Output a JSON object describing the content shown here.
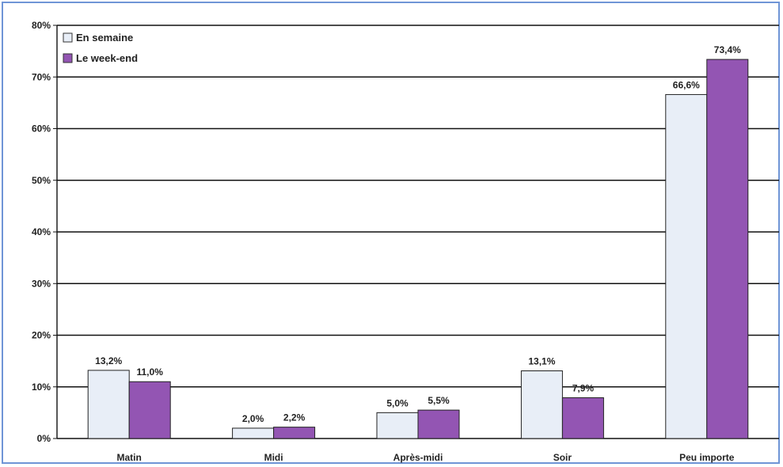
{
  "chart_data": {
    "type": "bar",
    "categories": [
      "Matin",
      "Midi",
      "Après-midi",
      "Soir",
      "Peu importe"
    ],
    "series": [
      {
        "name": "En semaine",
        "values": [
          13.2,
          2.0,
          5.0,
          13.1,
          66.6
        ],
        "labels": [
          "13,2%",
          "2,0%",
          "5,0%",
          "13,1%",
          "66,6%"
        ],
        "color": "#e8eef7"
      },
      {
        "name": "Le week-end",
        "values": [
          11.0,
          2.2,
          5.5,
          7.9,
          73.4
        ],
        "labels": [
          "11,0%",
          "2,2%",
          "5,5%",
          "7,9%",
          "73,4%"
        ],
        "color": "#9355b3"
      }
    ],
    "y_ticks": [
      "0%",
      "10%",
      "20%",
      "30%",
      "40%",
      "50%",
      "60%",
      "70%",
      "80%"
    ],
    "ylim": [
      0,
      80
    ],
    "grid": true,
    "legend_position": "top-left",
    "title": "",
    "xlabel": "",
    "ylabel": ""
  }
}
